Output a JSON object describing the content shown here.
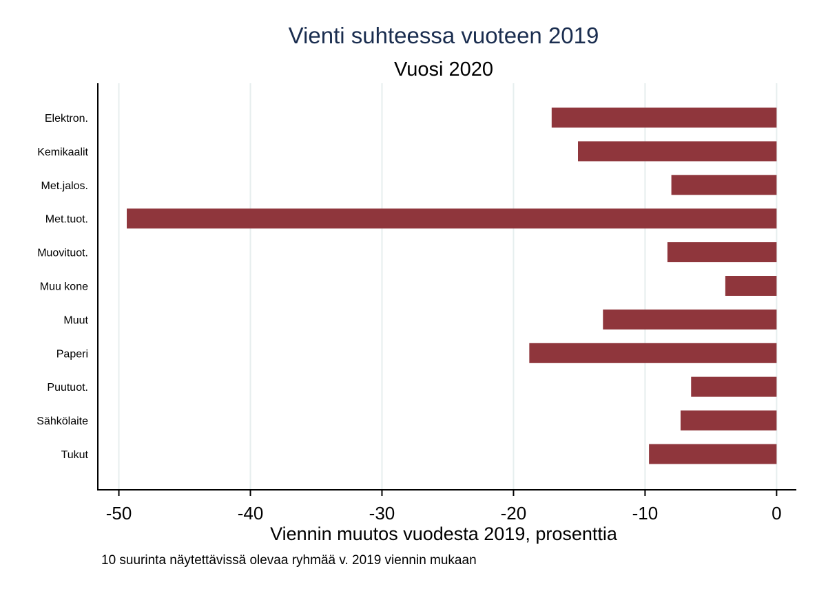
{
  "chart_data": {
    "type": "bar",
    "orientation": "horizontal",
    "title": "Vienti suhteessa vuoteen 2019",
    "subtitle": "Vuosi 2020",
    "xlabel": "Viennin muutos vuodesta 2019, prosenttia",
    "note": "10 suurinta näytettävissä olevaa ryhmää v. 2019 viennin mukaan",
    "categories": [
      "Elektron.",
      "Kemikaalit",
      "Met.jalos.",
      "Met.tuot.",
      "Muovituot.",
      "Muu kone",
      "Muut",
      "Paperi",
      "Puutuot.",
      "Sähkölaite",
      "Tukut"
    ],
    "values": [
      -17.1,
      -15.1,
      -8.0,
      -49.4,
      -8.3,
      -3.9,
      -13.2,
      -18.8,
      -6.5,
      -7.3,
      -9.7
    ],
    "xlim": [
      -51.6,
      1.5
    ],
    "xticks": [
      -50,
      -40,
      -30,
      -20,
      -10,
      0
    ],
    "xtick_labels": [
      "-50",
      "-40",
      "-30",
      "-20",
      "-10",
      "0"
    ],
    "grid": true,
    "colors": {
      "bar": "#8f363c",
      "title": "#1a2d4f",
      "grid": "#e6eeee"
    }
  }
}
